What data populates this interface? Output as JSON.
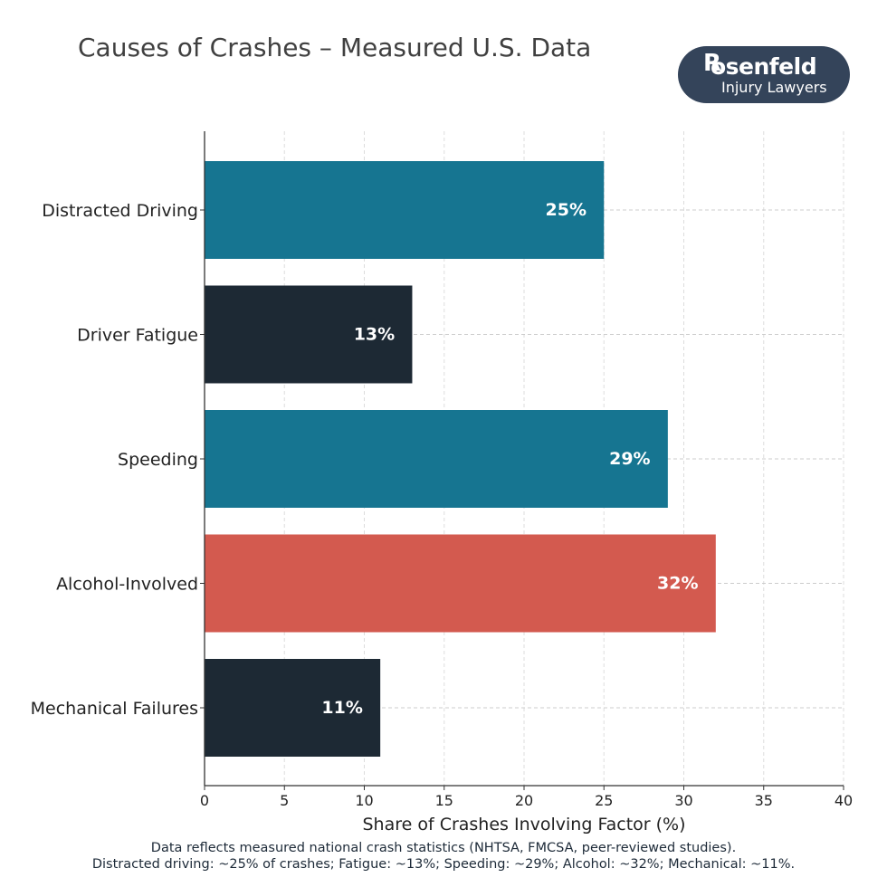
{
  "header": {
    "title": "Causes of Crashes – Measured U.S. Data"
  },
  "logo": {
    "mark": "R",
    "name": "osenfeld",
    "subtitle": "Injury Lawyers",
    "background": "#34445a"
  },
  "chart_data": {
    "type": "bar",
    "orientation": "horizontal",
    "title": "Causes of Crashes – Measured U.S. Data",
    "xlabel": "Share of Crashes Involving Factor (%)",
    "ylabel": "",
    "xlim": [
      0,
      40
    ],
    "xticks": [
      0,
      5,
      10,
      15,
      20,
      25,
      30,
      35,
      40
    ],
    "grid": true,
    "categories": [
      "Distracted Driving",
      "Driver Fatigue",
      "Speeding",
      "Alcohol-Involved",
      "Mechanical Failures"
    ],
    "values": [
      25,
      13,
      29,
      32,
      11
    ],
    "value_labels": [
      "25%",
      "13%",
      "29%",
      "32%",
      "11%"
    ],
    "colors": [
      "#167591",
      "#1d2934",
      "#167591",
      "#d35a4f",
      "#1d2934"
    ]
  },
  "footnote": {
    "line1": "Data reflects measured national crash statistics (NHTSA, FMCSA, peer-reviewed studies).",
    "line2": "Distracted driving: ~25% of crashes; Fatigue: ~13%; Speeding: ~29%; Alcohol: ~32%; Mechanical: ~11%."
  }
}
